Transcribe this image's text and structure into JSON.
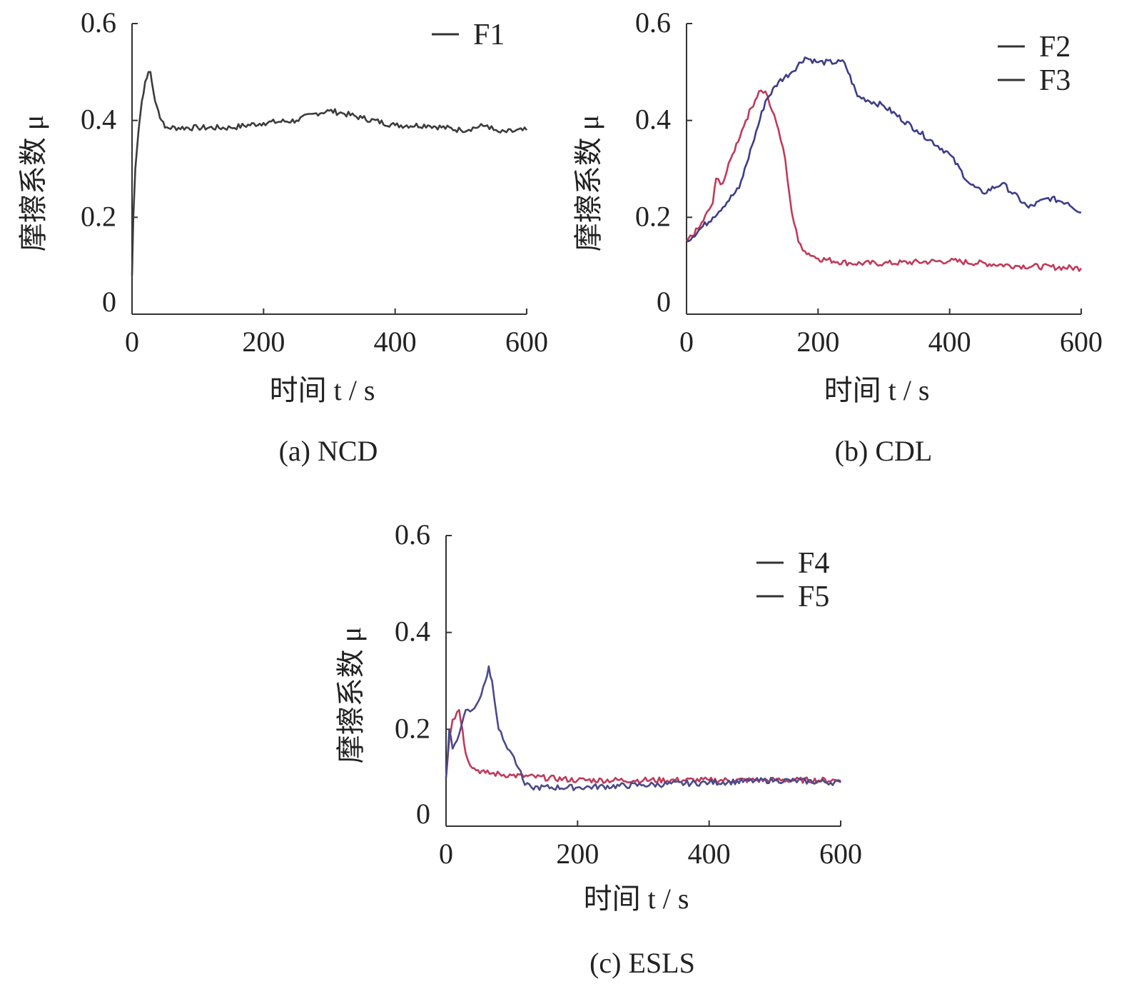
{
  "chart_data": [
    {
      "type": "line",
      "caption": "(a) NCD",
      "xlabel": "时间 t / s",
      "ylabel": "摩擦系数 μ",
      "xlim": [
        0,
        600
      ],
      "ylim": [
        0,
        0.6
      ],
      "xticks": [
        "0",
        "200",
        "400",
        "600"
      ],
      "yticks": [
        "0",
        "0.2",
        "0.4",
        "0.6"
      ],
      "legend_position": "top-right",
      "series": [
        {
          "name": "F1",
          "color": "#3c3c3c",
          "x": [
            0,
            2,
            5,
            10,
            15,
            20,
            25,
            28,
            30,
            35,
            40,
            45,
            50,
            100,
            150,
            200,
            250,
            280,
            300,
            320,
            350,
            400,
            450,
            500,
            540,
            550,
            560,
            600
          ],
          "y": [
            0.08,
            0.2,
            0.3,
            0.38,
            0.44,
            0.48,
            0.5,
            0.5,
            0.48,
            0.44,
            0.42,
            0.4,
            0.385,
            0.385,
            0.385,
            0.395,
            0.4,
            0.415,
            0.42,
            0.415,
            0.405,
            0.39,
            0.39,
            0.38,
            0.39,
            0.38,
            0.375,
            0.38
          ]
        }
      ]
    },
    {
      "type": "line",
      "caption": "(b) CDL",
      "xlabel": "时间 t / s",
      "ylabel": "摩擦系数 μ",
      "xlim": [
        0,
        600
      ],
      "ylim": [
        0,
        0.6
      ],
      "xticks": [
        "0",
        "200",
        "400",
        "600"
      ],
      "yticks": [
        "0",
        "0.2",
        "0.4",
        "0.6"
      ],
      "legend_position": "top-right",
      "series": [
        {
          "name": "F2",
          "color": "#c03a5a",
          "x": [
            0,
            20,
            40,
            45,
            55,
            70,
            90,
            110,
            120,
            130,
            140,
            150,
            160,
            170,
            180,
            200,
            250,
            300,
            400,
            500,
            600
          ],
          "y": [
            0.15,
            0.18,
            0.23,
            0.28,
            0.27,
            0.33,
            0.4,
            0.46,
            0.46,
            0.42,
            0.38,
            0.32,
            0.21,
            0.15,
            0.13,
            0.115,
            0.105,
            0.105,
            0.11,
            0.1,
            0.095
          ]
        },
        {
          "name": "F3",
          "color": "#3d3d8a",
          "x": [
            0,
            40,
            80,
            100,
            120,
            140,
            160,
            180,
            200,
            240,
            260,
            300,
            350,
            400,
            430,
            450,
            480,
            520,
            550,
            580,
            600
          ],
          "y": [
            0.15,
            0.2,
            0.26,
            0.35,
            0.44,
            0.48,
            0.5,
            0.53,
            0.52,
            0.52,
            0.45,
            0.43,
            0.38,
            0.33,
            0.27,
            0.25,
            0.27,
            0.22,
            0.24,
            0.23,
            0.21
          ]
        }
      ]
    },
    {
      "type": "line",
      "caption": "(c) ESLS",
      "xlabel": "时间 t / s",
      "ylabel": "摩擦系数 μ",
      "xlim": [
        0,
        600
      ],
      "ylim": [
        0,
        0.6
      ],
      "xticks": [
        "0",
        "200",
        "400",
        "600"
      ],
      "yticks": [
        "0",
        "0.2",
        "0.4",
        "0.6"
      ],
      "legend_position": "top-right",
      "series": [
        {
          "name": "F4",
          "color": "#c03a5a",
          "x": [
            0,
            5,
            10,
            20,
            25,
            30,
            40,
            60,
            100,
            200,
            300,
            400,
            500,
            600
          ],
          "y": [
            0.1,
            0.18,
            0.22,
            0.24,
            0.2,
            0.15,
            0.12,
            0.11,
            0.105,
            0.095,
            0.095,
            0.095,
            0.095,
            0.095
          ]
        },
        {
          "name": "F5",
          "color": "#4a4a8a",
          "x": [
            0,
            5,
            10,
            20,
            30,
            40,
            50,
            60,
            65,
            70,
            80,
            90,
            100,
            110,
            120,
            130,
            200,
            300,
            400,
            500,
            600
          ],
          "y": [
            0.1,
            0.2,
            0.16,
            0.19,
            0.24,
            0.24,
            0.26,
            0.3,
            0.33,
            0.3,
            0.2,
            0.17,
            0.15,
            0.12,
            0.085,
            0.08,
            0.08,
            0.085,
            0.09,
            0.095,
            0.09
          ]
        }
      ]
    }
  ]
}
